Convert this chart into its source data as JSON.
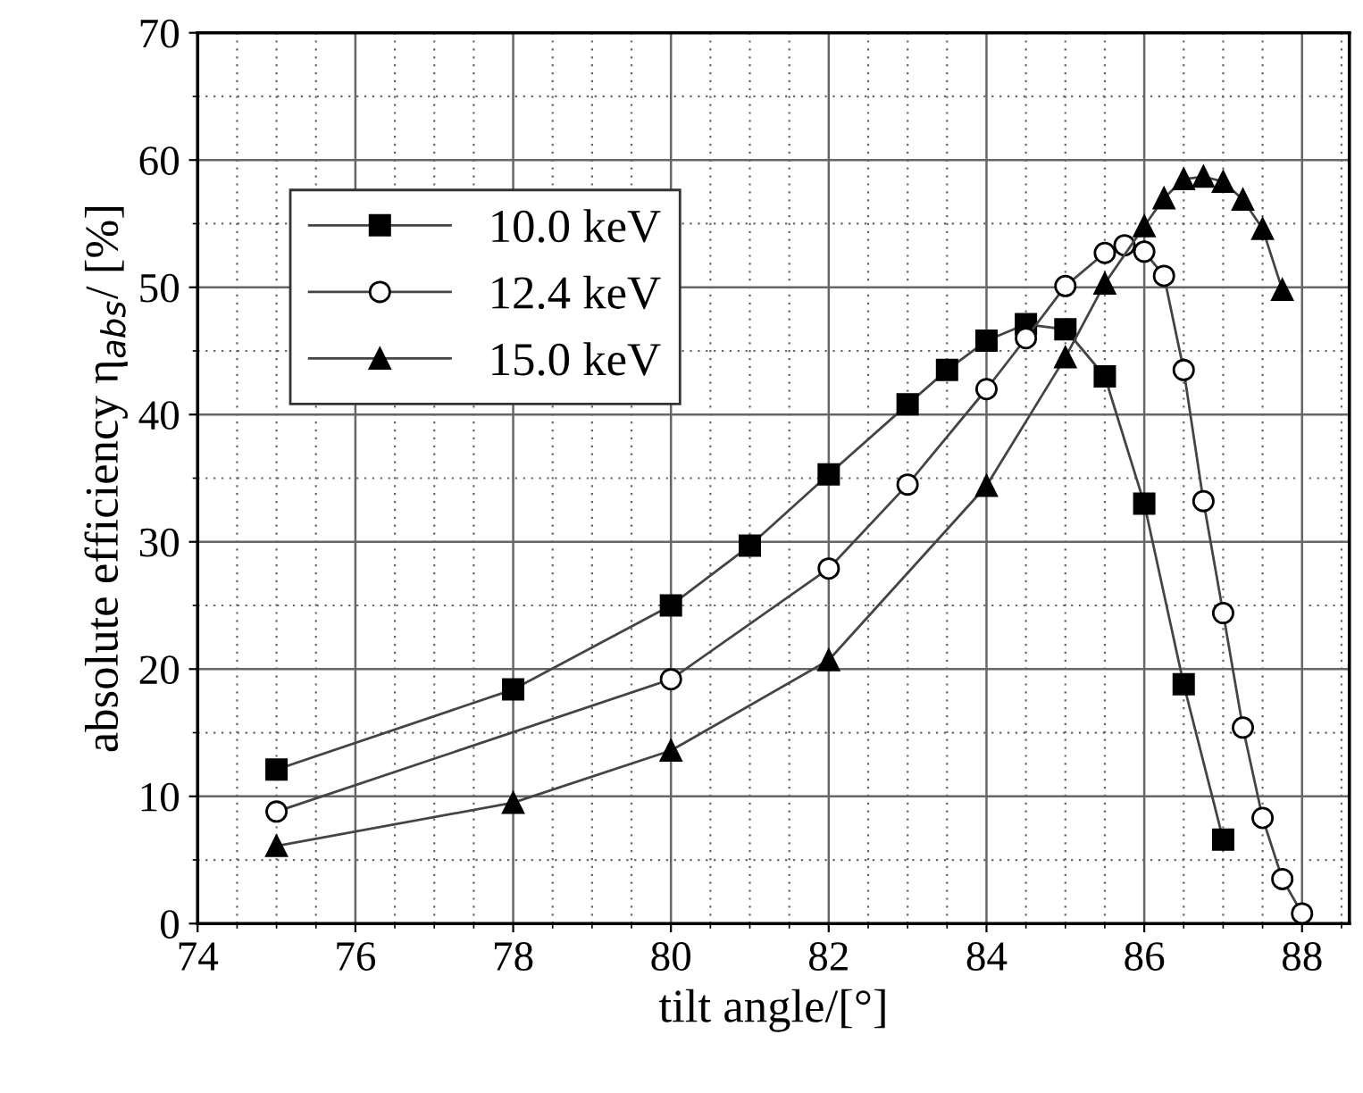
{
  "chart_data": {
    "type": "line",
    "xlabel": "tilt angle/[°]",
    "ylabel": "absolute efficiency η$_{abs}$/ [%]",
    "xlim": [
      74,
      88.6
    ],
    "xticks": [
      74,
      76,
      78,
      80,
      82,
      84,
      86,
      88
    ],
    "ylim": [
      0,
      70
    ],
    "yticks": [
      0,
      10,
      20,
      30,
      40,
      50,
      60,
      70
    ],
    "grid": true,
    "legend": "top left",
    "line_style": "solid",
    "series": [
      {
        "name": "10.0 keV",
        "color": "#000000",
        "marker": "square",
        "x": [
          75,
          78,
          80,
          81,
          82,
          83,
          83.5,
          84,
          84.5,
          85,
          85.5,
          86,
          86.5,
          87
        ],
        "values": [
          12.1,
          18.4,
          25,
          29.7,
          35.3,
          40.8,
          43.5,
          45.8,
          47.1,
          46.7,
          43,
          33,
          18.8,
          6.6
        ]
      },
      {
        "name": "12.4 keV",
        "color": "#000000",
        "marker": "circle",
        "x": [
          75,
          80,
          82,
          83,
          84,
          84.5,
          85,
          85.5,
          85.75,
          86,
          86.25,
          86.5,
          86.75,
          87,
          87.25,
          87.5,
          87.75,
          88
        ],
        "values": [
          8.8,
          19.2,
          27.9,
          34.5,
          42,
          46,
          50.1,
          52.7,
          53.3,
          52.8,
          50.9,
          43.5,
          33.2,
          24.4,
          15.4,
          8.3,
          3.5,
          0.8
        ]
      },
      {
        "name": "15.0 keV",
        "color": "#000000",
        "marker": "triangle",
        "x": [
          75,
          78,
          80,
          82,
          84,
          85,
          85.5,
          86,
          86.25,
          86.5,
          86.75,
          87,
          87.25,
          87.5,
          87.75
        ],
        "values": [
          6.1,
          9.5,
          13.6,
          20.7,
          34.4,
          44.5,
          50.3,
          54.8,
          57,
          58.5,
          58.7,
          58.3,
          56.9,
          54.6,
          49.8
        ]
      }
    ]
  }
}
